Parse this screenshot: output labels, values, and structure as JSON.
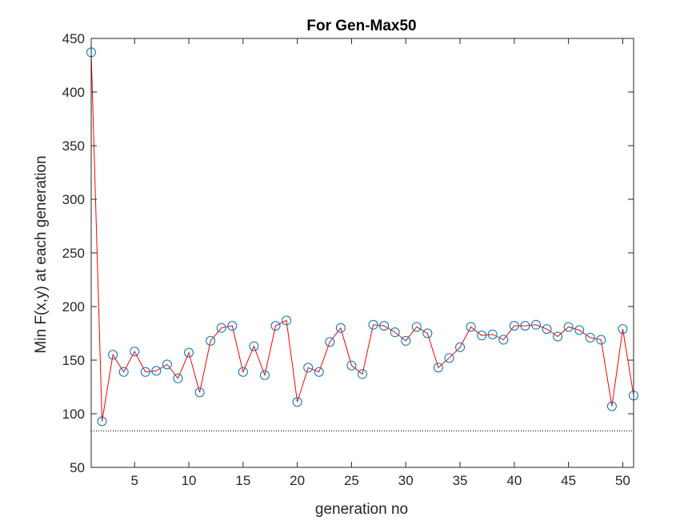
{
  "chart_data": {
    "type": "line",
    "title": "For Gen-Max50",
    "xlabel": "generation no",
    "ylabel": "Min F(x,y) at each generation",
    "xlim": [
      1,
      51
    ],
    "ylim": [
      50,
      450
    ],
    "xticks": [
      5,
      10,
      15,
      20,
      25,
      30,
      35,
      40,
      45,
      50
    ],
    "yticks": [
      50,
      100,
      150,
      200,
      250,
      300,
      350,
      400,
      450
    ],
    "grid": false,
    "x": [
      1,
      2,
      3,
      4,
      5,
      6,
      7,
      8,
      9,
      10,
      11,
      12,
      13,
      14,
      15,
      16,
      17,
      18,
      19,
      20,
      21,
      22,
      23,
      24,
      25,
      26,
      27,
      28,
      29,
      30,
      31,
      32,
      33,
      34,
      35,
      36,
      37,
      38,
      39,
      40,
      41,
      42,
      43,
      44,
      45,
      46,
      47,
      48,
      49,
      50,
      51
    ],
    "series": [
      {
        "name": "min F(x,y)",
        "line_color": "#ff0000",
        "marker": "circle",
        "marker_color": "#0072bd",
        "values": [
          437,
          93,
          155,
          139,
          158,
          139,
          140,
          146,
          133,
          157,
          120,
          168,
          180,
          182,
          139,
          163,
          136,
          182,
          187,
          111,
          143,
          139,
          167,
          180,
          145,
          137,
          183,
          182,
          176,
          168,
          181,
          175,
          143,
          152,
          162,
          181,
          173,
          174,
          169,
          182,
          182,
          183,
          179,
          172,
          181,
          178,
          171,
          169,
          107,
          179,
          117
        ]
      }
    ],
    "reference_line": {
      "y": 84,
      "style": "dotted",
      "color": "#000000"
    },
    "colors": {
      "axis": "#262626",
      "line": "#ff0000",
      "marker": "#0072bd"
    }
  }
}
